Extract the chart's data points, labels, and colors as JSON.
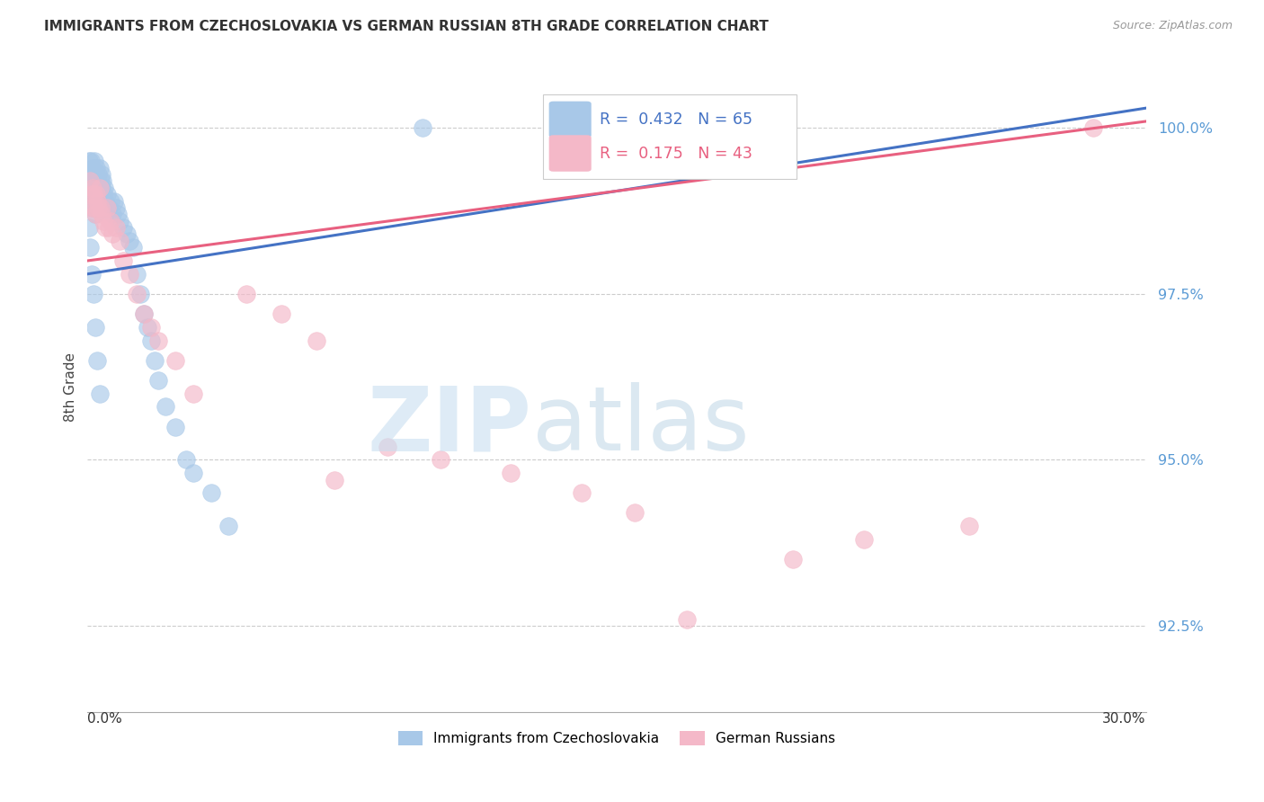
{
  "title": "IMMIGRANTS FROM CZECHOSLOVAKIA VS GERMAN RUSSIAN 8TH GRADE CORRELATION CHART",
  "source": "Source: ZipAtlas.com",
  "ylabel": "8th Grade",
  "yticks": [
    92.5,
    95.0,
    97.5,
    100.0
  ],
  "ytick_labels": [
    "92.5%",
    "95.0%",
    "97.5%",
    "100.0%"
  ],
  "xmin": 0.0,
  "xmax": 30.0,
  "ymin": 91.2,
  "ymax": 101.0,
  "blue_R": 0.432,
  "blue_N": 65,
  "pink_R": 0.175,
  "pink_N": 43,
  "blue_color": "#a8c8e8",
  "pink_color": "#f4b8c8",
  "blue_line_color": "#4472c4",
  "pink_line_color": "#e86080",
  "legend_label_blue": "Immigrants from Czechoslovakia",
  "legend_label_pink": "German Russians",
  "blue_x": [
    0.05,
    0.08,
    0.1,
    0.1,
    0.12,
    0.12,
    0.15,
    0.15,
    0.18,
    0.18,
    0.2,
    0.2,
    0.22,
    0.22,
    0.25,
    0.25,
    0.28,
    0.28,
    0.3,
    0.3,
    0.32,
    0.32,
    0.35,
    0.35,
    0.38,
    0.38,
    0.4,
    0.4,
    0.42,
    0.45,
    0.48,
    0.5,
    0.55,
    0.6,
    0.65,
    0.7,
    0.75,
    0.8,
    0.85,
    0.9,
    1.0,
    1.1,
    1.2,
    1.3,
    1.4,
    1.5,
    1.6,
    1.7,
    1.8,
    1.9,
    2.0,
    2.2,
    2.5,
    2.8,
    3.0,
    3.5,
    4.0,
    0.05,
    0.08,
    0.12,
    0.18,
    0.22,
    0.28,
    0.35,
    9.5
  ],
  "blue_y": [
    99.5,
    99.3,
    99.5,
    99.0,
    99.2,
    98.8,
    99.4,
    99.1,
    99.3,
    98.9,
    99.5,
    99.0,
    99.3,
    98.7,
    99.4,
    99.1,
    99.2,
    98.8,
    99.3,
    99.0,
    99.1,
    98.9,
    99.4,
    99.0,
    99.2,
    98.8,
    99.3,
    99.1,
    99.2,
    99.0,
    99.1,
    98.9,
    99.0,
    98.8,
    98.9,
    98.7,
    98.9,
    98.8,
    98.7,
    98.6,
    98.5,
    98.4,
    98.3,
    98.2,
    97.8,
    97.5,
    97.2,
    97.0,
    96.8,
    96.5,
    96.2,
    95.8,
    95.5,
    95.0,
    94.8,
    94.5,
    94.0,
    98.5,
    98.2,
    97.8,
    97.5,
    97.0,
    96.5,
    96.0,
    100.0
  ],
  "pink_x": [
    0.08,
    0.1,
    0.12,
    0.15,
    0.18,
    0.2,
    0.22,
    0.25,
    0.28,
    0.3,
    0.35,
    0.38,
    0.4,
    0.45,
    0.5,
    0.55,
    0.6,
    0.65,
    0.7,
    0.8,
    0.9,
    1.0,
    1.2,
    1.4,
    1.6,
    1.8,
    2.0,
    2.5,
    3.0,
    4.5,
    5.5,
    6.5,
    7.0,
    8.5,
    10.0,
    12.0,
    14.0,
    15.5,
    17.0,
    20.0,
    22.0,
    25.0,
    28.5
  ],
  "pink_y": [
    99.2,
    99.0,
    98.8,
    99.1,
    99.0,
    98.8,
    98.7,
    99.0,
    98.9,
    98.8,
    99.1,
    98.8,
    98.7,
    98.6,
    98.5,
    98.8,
    98.5,
    98.6,
    98.4,
    98.5,
    98.3,
    98.0,
    97.8,
    97.5,
    97.2,
    97.0,
    96.8,
    96.5,
    96.0,
    97.5,
    97.2,
    96.8,
    94.7,
    95.2,
    95.0,
    94.8,
    94.5,
    94.2,
    92.6,
    93.5,
    93.8,
    94.0,
    100.0
  ],
  "blue_trendline_x0": 0.0,
  "blue_trendline_y0": 97.8,
  "blue_trendline_x1": 30.0,
  "blue_trendline_y1": 100.3,
  "pink_trendline_x0": 0.0,
  "pink_trendline_y0": 98.0,
  "pink_trendline_x1": 30.0,
  "pink_trendline_y1": 100.1
}
